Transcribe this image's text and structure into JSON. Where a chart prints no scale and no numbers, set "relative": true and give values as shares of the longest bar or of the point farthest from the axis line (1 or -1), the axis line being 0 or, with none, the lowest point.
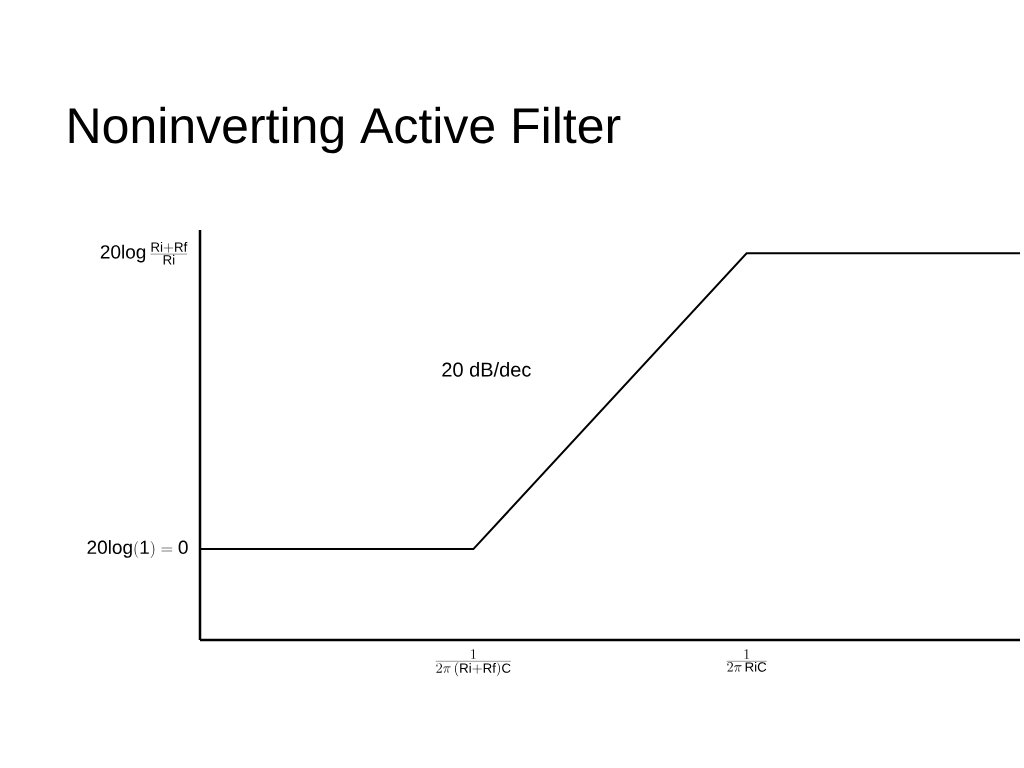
{
  "chart_data": {
    "type": "line",
    "title": "Noninverting Active Filter",
    "relative": true,
    "categories": [
      null,
      "\\frac{1}{2\\pi\\,\\mathrm{(Ri{+}Rf)C}}",
      "\\frac{1}{2\\pi\\,\\mathrm{RiC}}",
      null
    ],
    "series": [
      {
        "color": "#000000",
        "values": [
          0.235,
          0.235,
          1,
          1
        ]
      }
    ],
    "annotations": [
      "20 dB/dec",
      "\\mathrm{20log(1) = 0}",
      "\\mathrm{20log}\\,\\frac{\\mathrm{Ri{+}Rf}}{\\mathrm{Ri}}"
    ],
    "marker": "none",
    "line_style": "solid"
  }
}
